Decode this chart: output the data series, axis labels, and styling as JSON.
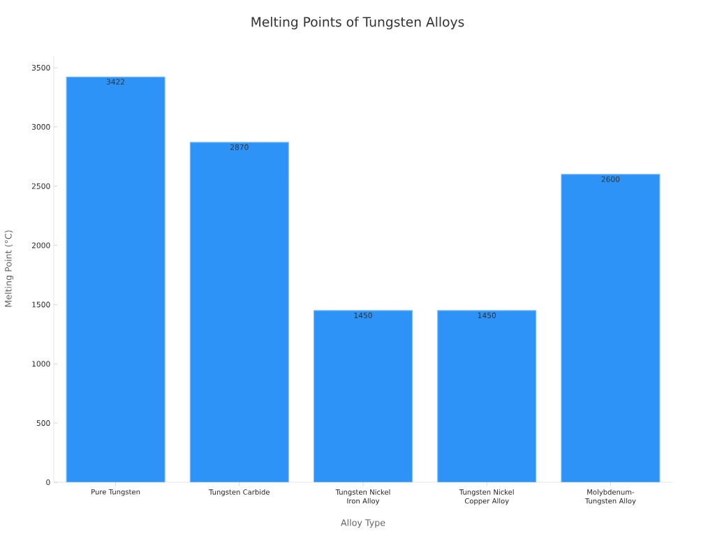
{
  "chart_data": {
    "type": "bar",
    "title": "Melting Points of Tungsten Alloys",
    "xlabel": "Alloy Type",
    "ylabel": "Melting Point (°C)",
    "categories": [
      "Pure Tungsten",
      "Tungsten Carbide",
      "Tungsten Nickel Iron Alloy",
      "Tungsten Nickel Copper Alloy",
      "Molybdenum-Tungsten Alloy"
    ],
    "values": [
      3422,
      2870,
      1450,
      1450,
      2600
    ],
    "color": "#2e93f7",
    "ylim": [
      0,
      3600
    ],
    "yticks": [
      0,
      500,
      1000,
      1500,
      2000,
      2500,
      3000,
      3500
    ],
    "grid": false,
    "data_labels": true
  }
}
